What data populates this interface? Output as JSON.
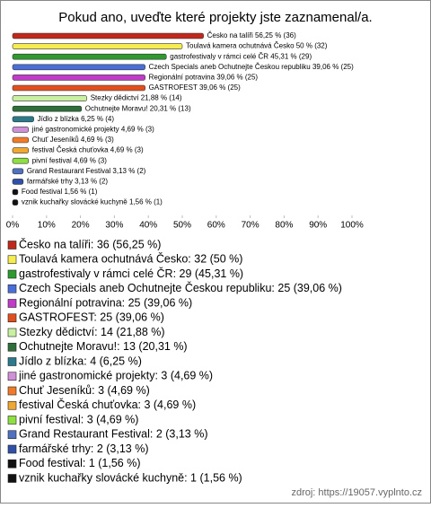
{
  "chart_data": {
    "type": "bar",
    "orientation": "horizontal",
    "title": "Pokud ano, uveďte které projekty jste zaznamenal/a.",
    "categories": [
      "Česko na talíři",
      "Toulavá kamera ochutnává Česko",
      "gastrofestivaly v rámci celé ČR",
      "Czech Specials aneb Ochutnejte Českou republiku",
      "Regionální potravina",
      "GASTROFEST",
      "Stezky dědictví",
      "Ochutnejte Moravu!",
      "Jídlo z blízka",
      "jiné gastronomické projekty",
      "Chuť Jeseníků",
      "festival Česká chuťovka",
      "pivní festival",
      "Grand Restaurant Festival",
      "farmářské trhy",
      "Food festival",
      "vznik kuchařky slovácké kuchyně"
    ],
    "values": [
      56.25,
      50,
      45.31,
      39.06,
      39.06,
      39.06,
      21.88,
      20.31,
      6.25,
      4.69,
      4.69,
      4.69,
      4.69,
      3.13,
      3.13,
      1.56,
      1.56
    ],
    "value_labels": [
      "Česko na talíři 56,25 % (36)",
      "Toulavá kamera ochutnává Česko 50 % (32)",
      "gastrofestivaly v rámci celé ČR 45,31 % (29)",
      "Czech Specials aneb Ochutnejte Českou republiku 39,06 % (25)",
      "Regionální potravina 39,06 % (25)",
      "GASTROFEST 39,06 % (25)",
      "Stezky dědictví 21,88 % (14)",
      "Ochutnejte Moravu! 20,31 % (13)",
      "Jídlo z blízka 6,25 % (4)",
      "jiné gastronomické projekty 4,69 % (3)",
      "Chuť Jeseníků 4,69 % (3)",
      "festival Česká chuťovka 4,69 % (3)",
      "pivní festival 4,69 % (3)",
      "Grand Restaurant Festival 3,13 % (2)",
      "farmářské trhy 3,13 % (2)",
      "Food festival 1,56 % (1)",
      "vznik kuchařky slovácké kuchyně 1,56 % (1)"
    ],
    "legend_labels": [
      "Česko na talíři: 36 (56,25 %)",
      "Toulavá kamera ochutnává Česko: 32 (50 %)",
      "gastrofestivaly v rámci celé ČR: 29 (45,31 %)",
      "Czech Specials aneb Ochutnejte Českou republiku: 25 (39,06 %)",
      "Regionální potravina: 25 (39,06 %)",
      "GASTROFEST: 25 (39,06 %)",
      "Stezky dědictví: 14 (21,88 %)",
      "Ochutnejte Moravu!: 13 (20,31 %)",
      "Jídlo z blízka: 4 (6,25 %)",
      "jiné gastronomické projekty: 3 (4,69 %)",
      "Chuť Jeseníků: 3 (4,69 %)",
      "festival Česká chuťovka: 3 (4,69 %)",
      "pivní festival: 3 (4,69 %)",
      "Grand Restaurant Festival: 2 (3,13 %)",
      "farmářské trhy: 2 (3,13 %)",
      "Food festival: 1 (1,56 %)",
      "vznik kuchařky slovácké kuchyně: 1 (1,56 %)"
    ],
    "colors": [
      "#c0281c",
      "#f4ec50",
      "#2e9a2e",
      "#4a6ed8",
      "#c03cc8",
      "#e0501e",
      "#c8f0a0",
      "#2e6e3a",
      "#2a7a8c",
      "#d090d8",
      "#f07a28",
      "#f0a830",
      "#8ee040",
      "#5070c0",
      "#3050a8",
      "#111111",
      "#111111"
    ],
    "xlim": [
      0,
      100
    ],
    "xticks": [
      {
        "value": 0,
        "label": "0%"
      },
      {
        "value": 10,
        "label": "10%"
      },
      {
        "value": 20,
        "label": "20%"
      },
      {
        "value": 30,
        "label": "30%"
      },
      {
        "value": 40,
        "label": "40%"
      },
      {
        "value": 50,
        "label": "50%"
      },
      {
        "value": 60,
        "label": "60%"
      },
      {
        "value": 70,
        "label": "70%"
      },
      {
        "value": 80,
        "label": "80%"
      },
      {
        "value": 90,
        "label": "90%"
      },
      {
        "value": 100,
        "label": "100%"
      }
    ],
    "source": "zdroj: https://19057.vyplnto.cz"
  }
}
